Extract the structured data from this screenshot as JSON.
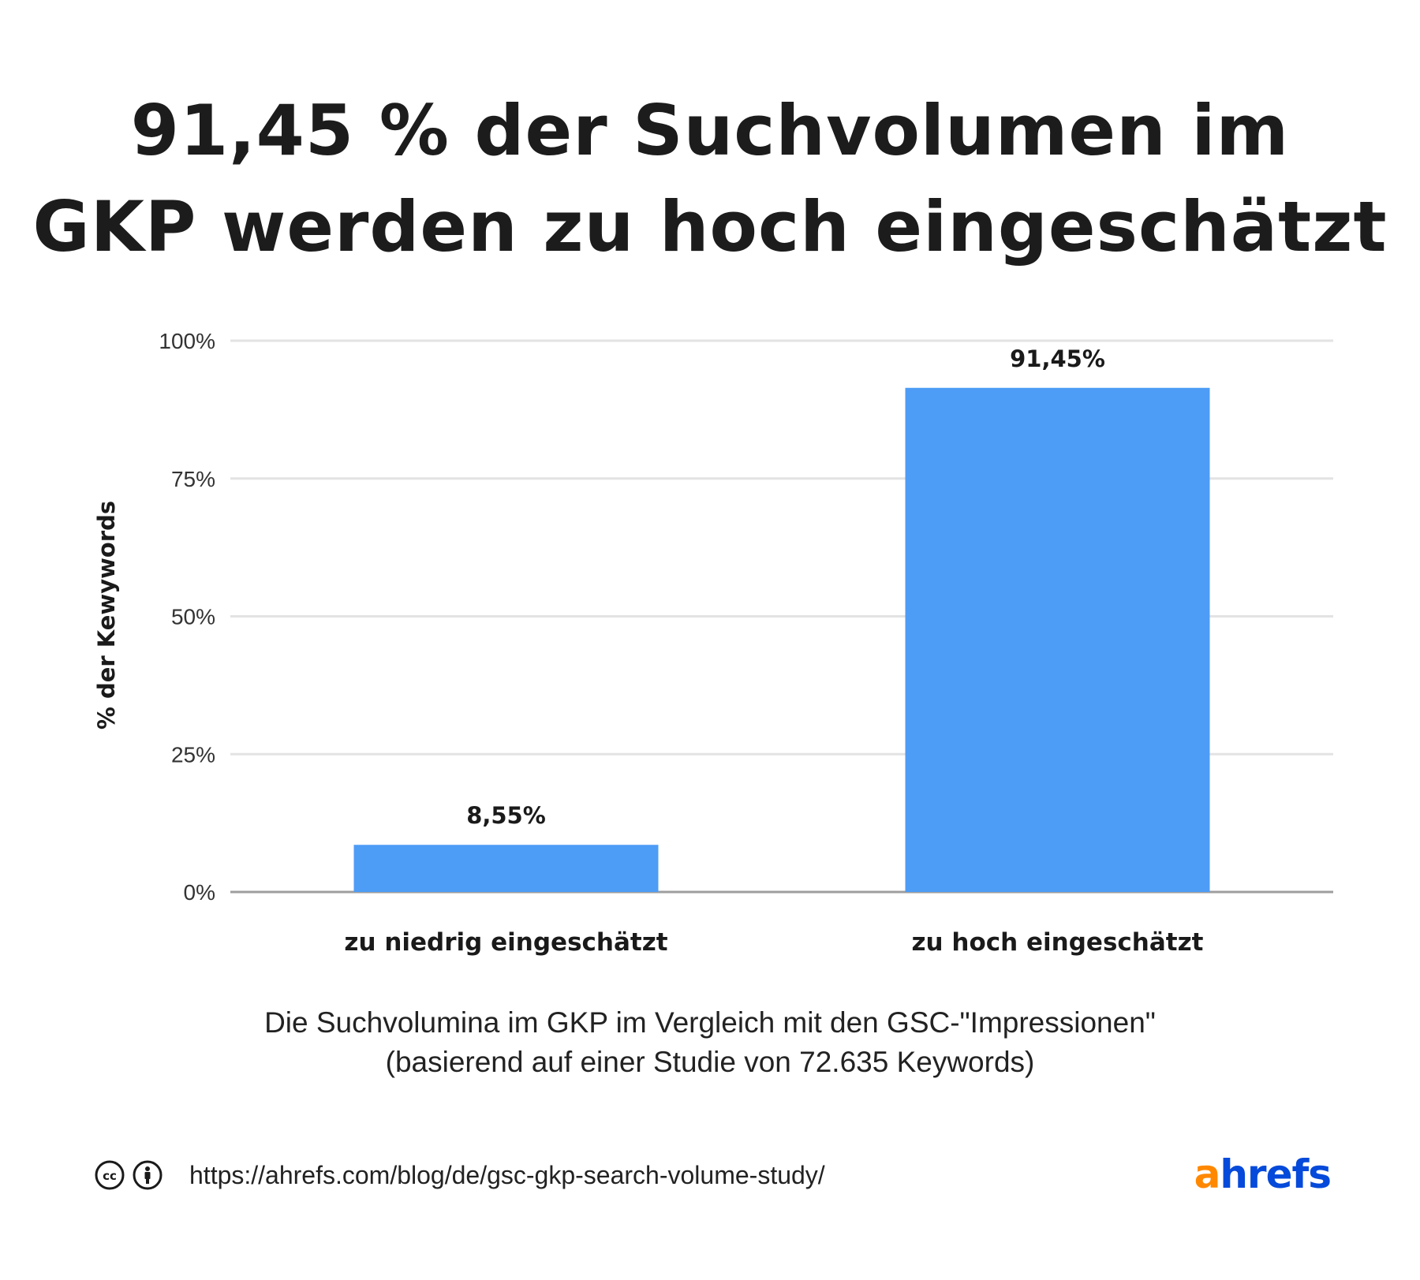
{
  "title": {
    "line1": "91,45 % der Suchvolumen im",
    "line2": "GKP werden zu hoch eingeschätzt"
  },
  "chart_data": {
    "type": "bar",
    "categories": [
      "zu niedrig eingeschätzt",
      "zu hoch eingeschätzt"
    ],
    "values": [
      8.55,
      91.45
    ],
    "data_labels": [
      "8,55%",
      "91,45%"
    ],
    "ylabel": "% der Kewywords",
    "xlabel": "",
    "ylim": [
      0,
      100
    ],
    "yticks": [
      0,
      25,
      50,
      75,
      100
    ],
    "ytick_labels": [
      "0%",
      "25%",
      "50%",
      "75%",
      "100%"
    ],
    "grid": true,
    "bar_color": "#4d9cf6"
  },
  "subtitle": {
    "line1": "Die Suchvolumina im GKP im Vergleich mit den GSC-\"Impressionen\"",
    "line2": "(basierend auf einer Studie von 72.635 Keywords)"
  },
  "footer": {
    "url": "https://ahrefs.com/blog/de/gsc-gkp-search-volume-study/",
    "icons": [
      "creative-commons-icon",
      "attribution-icon"
    ]
  },
  "logo": {
    "part1": "a",
    "part2": "hrefs"
  },
  "colors": {
    "grid": "#e3e3e3",
    "axis": "#9e9e9e",
    "bar": "#4d9cf6",
    "logo_orange": "#ff8800",
    "logo_blue": "#054ada"
  }
}
